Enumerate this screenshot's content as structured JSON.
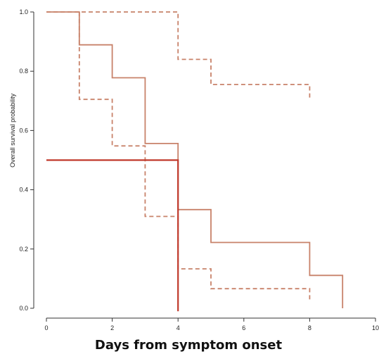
{
  "chart_data": {
    "type": "line",
    "title": "",
    "xlabel": "Days from symptom onset",
    "ylabel": "Overall survival probability",
    "xlim": [
      0,
      10
    ],
    "ylim": [
      0,
      1
    ],
    "x_ticks": [
      0,
      2,
      4,
      6,
      8,
      10
    ],
    "y_ticks": [
      0.0,
      0.2,
      0.4,
      0.6,
      0.8,
      1.0
    ],
    "x_tick_labels": [
      "0",
      "2",
      "4",
      "6",
      "8",
      "10"
    ],
    "y_tick_labels": [
      "0.0",
      "0.2",
      "0.4",
      "0.6",
      "0.8",
      "1.0"
    ],
    "grid": false,
    "series": [
      {
        "style": "solid",
        "color": "#c8826a",
        "x": [
          0,
          1,
          1,
          2,
          2,
          3,
          3,
          4,
          4,
          5,
          5,
          8,
          8,
          9,
          9
        ],
        "y": [
          1.0,
          1.0,
          0.889,
          0.889,
          0.778,
          0.778,
          0.556,
          0.556,
          0.333,
          0.333,
          0.222,
          0.222,
          0.111,
          0.111,
          0.0
        ]
      },
      {
        "style": "dashed",
        "color": "#c8826a",
        "x": [
          0,
          4,
          4,
          5,
          5,
          8,
          8
        ],
        "y": [
          1.0,
          1.0,
          0.84,
          0.84,
          0.755,
          0.755,
          0.71
        ]
      },
      {
        "style": "dashed",
        "color": "#c8826a",
        "x": [
          1,
          1,
          2,
          2,
          3,
          3,
          4,
          4,
          5,
          5,
          8,
          8
        ],
        "y": [
          1.0,
          0.705,
          0.705,
          0.548,
          0.548,
          0.31,
          0.31,
          0.133,
          0.133,
          0.066,
          0.066,
          0.025
        ]
      },
      {
        "style": "solid",
        "color": "#c0392b",
        "x": [
          0,
          4,
          4
        ],
        "y": [
          0.5,
          0.5,
          -0.01
        ]
      }
    ]
  }
}
